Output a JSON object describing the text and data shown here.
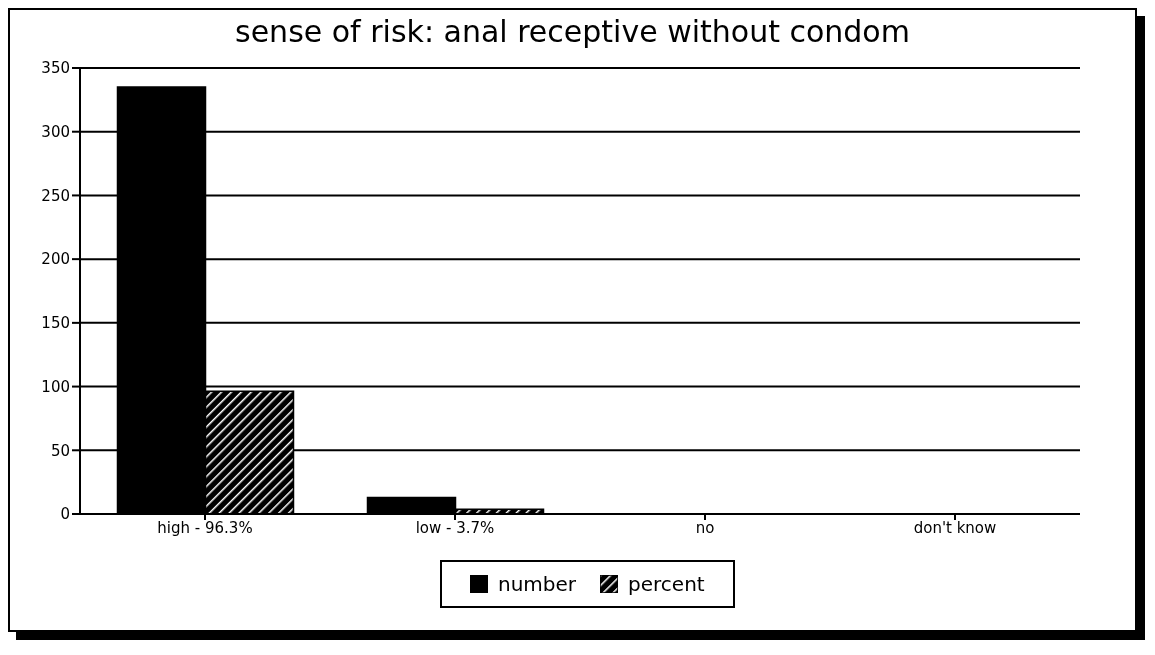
{
  "chart_data": {
    "type": "bar",
    "title": "sense of risk:  anal receptive without condom",
    "categories": [
      "high - 96.3%",
      "low - 3.7%",
      "no",
      "don't know"
    ],
    "series": [
      {
        "name": "number",
        "color": "#000000",
        "values": [
          335,
          13,
          0,
          0
        ]
      },
      {
        "name": "percent",
        "color": "#000000",
        "values": [
          96.3,
          3.7,
          0,
          0
        ]
      }
    ],
    "ylim": [
      0,
      350
    ],
    "yticks": [
      0,
      50,
      100,
      150,
      200,
      250,
      300,
      350
    ],
    "grid": "y",
    "legend": "bottom"
  }
}
